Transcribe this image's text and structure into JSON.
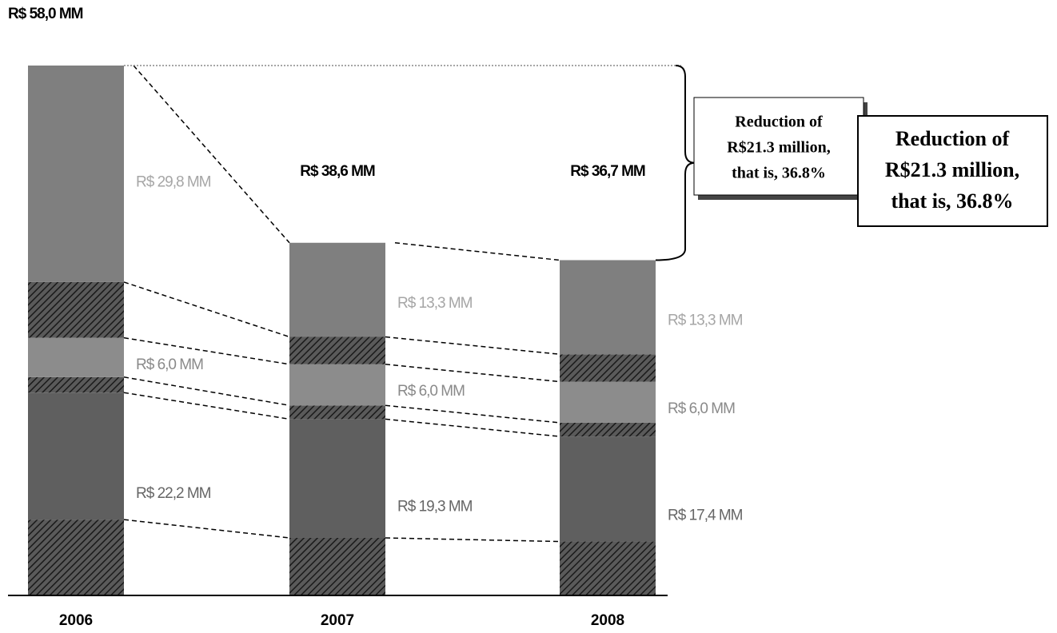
{
  "chart_data": {
    "type": "bar",
    "stacked": true,
    "categories": [
      "2006",
      "2007",
      "2008"
    ],
    "ylim": [
      0,
      58
    ],
    "series": [
      {
        "color": "#5f5f5f",
        "label_color": "#666666",
        "values": [
          22.2,
          19.3,
          17.4
        ],
        "hatched": [
          8.3,
          6.3,
          5.9
        ],
        "value_labels": [
          "R$ 22,2 MM",
          "R$ 19,3 MM",
          "R$ 17,4 MM"
        ]
      },
      {
        "color": "#8c8c8c",
        "label_color": "#8a8a8a",
        "values": [
          6.0,
          6.0,
          6.0
        ],
        "hatched": [
          1.7,
          1.5,
          1.5
        ],
        "value_labels": [
          "R$ 6,0 MM",
          "R$ 6,0 MM",
          "R$ 6,0 MM"
        ]
      },
      {
        "color": "#7f7f7f",
        "label_color": "#a6a6a6",
        "values": [
          29.8,
          13.3,
          13.3
        ],
        "hatched": [
          6.1,
          3.0,
          3.0
        ],
        "value_labels": [
          "R$ 29,8 MM",
          "R$ 13,3 MM",
          "R$ 13,3 MM"
        ]
      }
    ],
    "totals": [
      58.0,
      38.6,
      36.7
    ],
    "total_labels": [
      "R$ 58,0 MM",
      "R$ 38,6 MM",
      "R$ 36,7 MM"
    ],
    "annotations": [
      [
        "Reduction of",
        "R$21.3 million,",
        "that is, 36.8%"
      ],
      [
        "Reduction of",
        "R$21.3 million,",
        "that is, 36.8%"
      ]
    ]
  }
}
